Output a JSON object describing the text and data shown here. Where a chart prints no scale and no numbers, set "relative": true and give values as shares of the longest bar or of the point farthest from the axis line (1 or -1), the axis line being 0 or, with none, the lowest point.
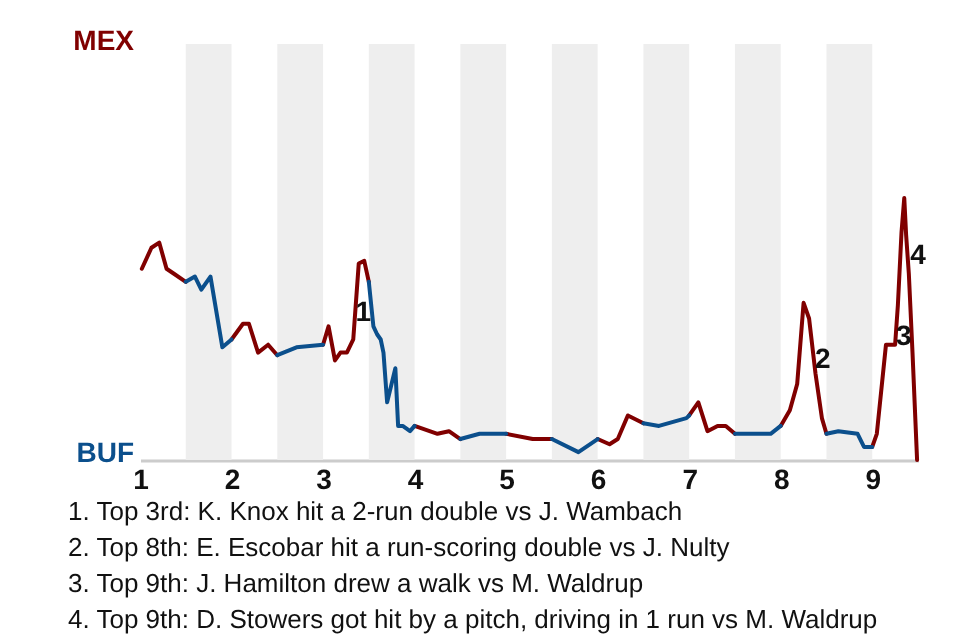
{
  "chart_data": {
    "type": "line",
    "relative": true,
    "xlim": [
      1,
      9.5
    ],
    "xticks": [
      1,
      2,
      3,
      4,
      5,
      6,
      7,
      8,
      9
    ],
    "line_style": "solid",
    "series": [
      {
        "name": "MEX",
        "color": "#800000",
        "x": [
          1.02,
          1.125,
          1.21,
          1.29,
          1.375,
          1.5,
          1.75,
          2.0,
          2.125,
          2.19,
          2.29,
          2.4,
          2.5,
          2.75,
          3.0,
          3.06,
          3.13,
          3.19,
          3.26,
          3.33,
          3.39,
          3.45,
          3.5,
          3.75,
          4.0,
          4.25,
          4.375,
          4.5,
          4.75,
          5.0,
          5.29,
          5.5,
          5.75,
          6.0,
          6.13,
          6.22,
          6.33,
          6.5,
          6.75,
          7.0,
          7.1,
          7.2,
          7.31,
          7.4,
          7.5,
          7.75,
          8.0,
          8.1,
          8.18,
          8.25,
          8.31,
          8.38,
          8.45,
          8.5,
          8.75,
          9.0,
          9.05,
          9.15,
          9.25,
          9.28,
          9.32,
          9.35,
          9.37,
          9.4,
          9.44,
          9.49
        ],
        "values": [
          0.73,
          0.81,
          0.83,
          0.73,
          0.71,
          0.68,
          null,
          0.46,
          0.52,
          0.52,
          0.41,
          0.44,
          0.4,
          null,
          0.44,
          0.51,
          0.38,
          0.41,
          0.41,
          0.46,
          0.75,
          0.76,
          0.68,
          null,
          0.13,
          0.1,
          0.11,
          0.08,
          null,
          0.1,
          0.08,
          0.08,
          null,
          0.08,
          0.06,
          0.08,
          0.17,
          0.14,
          null,
          0.17,
          0.22,
          0.11,
          0.13,
          0.13,
          0.1,
          null,
          0.13,
          0.19,
          0.29,
          0.6,
          0.54,
          0.33,
          0.16,
          0.1,
          null,
          0.05,
          0.1,
          0.44,
          0.44,
          0.59,
          0.87,
          1,
          0.86,
          0.71,
          0.41,
          0
        ]
      },
      {
        "name": "BUF",
        "color": "#0b4f8c",
        "x": [
          1.5,
          1.6,
          1.67,
          1.77,
          1.9,
          2.0,
          2.25,
          2.5,
          2.71,
          3.0,
          3.25,
          3.5,
          3.55,
          3.59,
          3.63,
          3.66,
          3.7,
          3.79,
          3.82,
          3.87,
          3.95,
          4.0,
          4.25,
          4.5,
          4.71,
          5.0,
          5.25,
          5.5,
          5.79,
          6.0,
          6.25,
          6.5,
          6.67,
          6.97,
          7.0,
          7.25,
          7.5,
          7.73,
          7.89,
          8.0,
          8.25,
          8.5,
          8.63,
          8.84,
          8.91,
          9.0
        ],
        "values": [
          0.68,
          0.7,
          0.65,
          0.7,
          0.43,
          0.46,
          null,
          0.4,
          0.43,
          0.44,
          null,
          0.68,
          0.51,
          0.48,
          0.46,
          0.41,
          0.22,
          0.35,
          0.13,
          0.13,
          0.11,
          0.13,
          null,
          0.08,
          0.1,
          0.1,
          null,
          0.08,
          0.03,
          0.08,
          null,
          0.14,
          0.13,
          0.16,
          0.17,
          null,
          0.1,
          0.1,
          0.1,
          0.13,
          null,
          0.1,
          0.11,
          0.1,
          0.05,
          0.05
        ]
      }
    ],
    "bands": [
      {
        "axis": "x",
        "from": 1.5,
        "to": 2,
        "color": "#eeeeee"
      },
      {
        "axis": "x",
        "from": 2.5,
        "to": 3,
        "color": "#eeeeee"
      },
      {
        "axis": "x",
        "from": 3.5,
        "to": 4,
        "color": "#eeeeee"
      },
      {
        "axis": "x",
        "from": 4.5,
        "to": 5,
        "color": "#eeeeee"
      },
      {
        "axis": "x",
        "from": 5.5,
        "to": 6,
        "color": "#eeeeee"
      },
      {
        "axis": "x",
        "from": 6.5,
        "to": 7,
        "color": "#eeeeee"
      },
      {
        "axis": "x",
        "from": 7.5,
        "to": 8,
        "color": "#eeeeee"
      },
      {
        "axis": "x",
        "from": 8.5,
        "to": 9,
        "color": "#eeeeee"
      }
    ],
    "annotations": [
      {
        "text": "1",
        "x": 3.44,
        "y": 0.56
      },
      {
        "text": "2",
        "x": 8.46,
        "y": 0.38
      },
      {
        "text": "3",
        "x": 9.344,
        "y": 0.47
      },
      {
        "text": "4",
        "x": 9.5,
        "y": 0.78
      },
      "1. Top 3rd: K. Knox hit a 2-run double vs J. Wambach",
      "2. Top 8th: E. Escobar hit a run-scoring double vs J. Nulty",
      "3. Top 9th: J. Hamilton drew a walk vs M. Waldrup",
      "4. Top 9th: D. Stowers got hit by a pitch, driving in 1 run vs M. Waldrup"
    ]
  }
}
